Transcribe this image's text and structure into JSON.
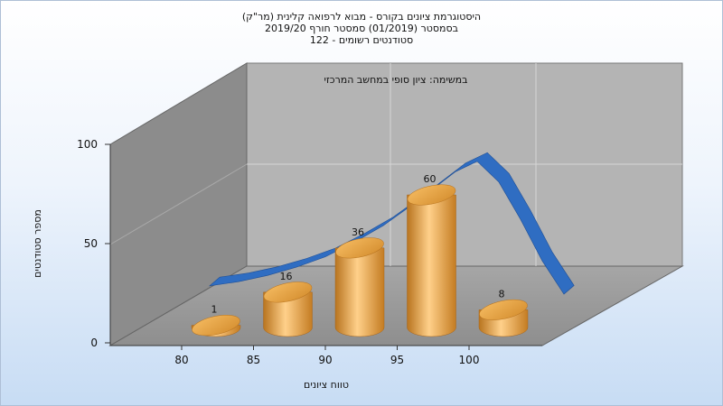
{
  "chart_data": {
    "type": "bar",
    "title": "היסטוגרמת ציונים בקורס - מבוא לרפואה קלינית (מר\"ק)",
    "subtitle_1": "בסמסטר (01/2019) סמסטר חורף 2019/20",
    "subtitle_2": "סטודנטים רשומים - 122",
    "annotation": "במשימה: ציון סופי במחשב המרכזי",
    "xlabel": "טווח ציונים",
    "ylabel": "מספר סטודנטים",
    "ylim": [
      0,
      100
    ],
    "yticks": [
      "0",
      "50",
      "100"
    ],
    "categories": [
      "80",
      "85",
      "90",
      "95",
      "100"
    ],
    "values": [
      1,
      16,
      36,
      60,
      8
    ],
    "series_colors": {
      "bars": "#e7a443",
      "curve": "#2f6dc2"
    },
    "curve": {
      "x": [
        82,
        84,
        86,
        88,
        90,
        92,
        94,
        96,
        97.5,
        99,
        100.5,
        102,
        103.5,
        105,
        106.5
      ],
      "y": [
        24,
        26,
        29,
        33,
        38,
        45,
        53,
        63,
        71,
        79,
        84,
        74,
        56,
        36,
        20
      ]
    },
    "grid": true
  }
}
